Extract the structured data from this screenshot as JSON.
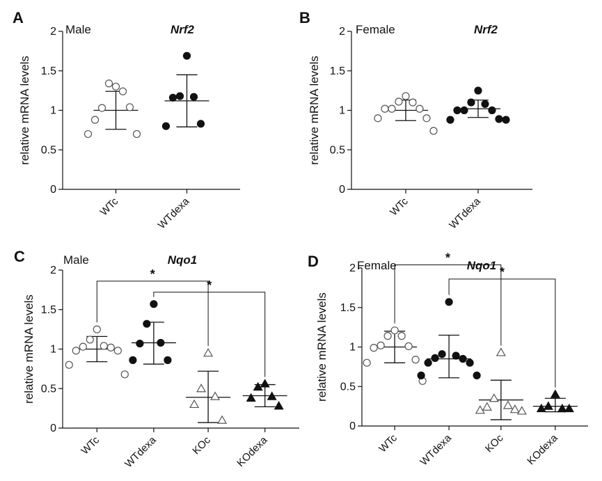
{
  "chart_data": [
    {
      "type": "scatter",
      "panel_label": "A",
      "sex": "Male",
      "gene": "Nrf2",
      "ylabel": "relative mRNA levels",
      "ylim": [
        0,
        2
      ],
      "yticks": [
        "0",
        "0.5",
        "1",
        "1.5",
        "2"
      ],
      "categories": [
        "WTc",
        "WTdexa"
      ],
      "groups": [
        {
          "name": "WTc",
          "marker": "circle-open",
          "mean": 1.0,
          "upper": 1.24,
          "lower": 0.76,
          "points": [
            1.3,
            1.34,
            1.24,
            1.03,
            1.04,
            0.88,
            0.7,
            0.7
          ]
        },
        {
          "name": "WTdexa",
          "marker": "circle-filled",
          "mean": 1.12,
          "upper": 1.45,
          "lower": 0.79,
          "points": [
            1.69,
            1.18,
            1.17,
            1.16,
            0.83,
            0.8
          ]
        }
      ],
      "comparisons": []
    },
    {
      "type": "scatter",
      "panel_label": "B",
      "sex": "Female",
      "gene": "Nrf2",
      "ylabel": "relative mRNA levels",
      "ylim": [
        0,
        2
      ],
      "yticks": [
        "0",
        "0.5",
        "1",
        "1.5",
        "2"
      ],
      "categories": [
        "WTc",
        "WTdexa"
      ],
      "groups": [
        {
          "name": "WTc",
          "marker": "circle-open",
          "mean": 1.0,
          "upper": 1.13,
          "lower": 0.87,
          "points": [
            1.18,
            1.11,
            1.1,
            1.02,
            1.02,
            1.02,
            0.9,
            0.9,
            0.74
          ]
        },
        {
          "name": "WTdexa",
          "marker": "circle-filled",
          "mean": 1.02,
          "upper": 1.13,
          "lower": 0.91,
          "points": [
            1.25,
            1.1,
            1.08,
            1.0,
            1.0,
            1.0,
            0.89,
            0.88,
            0.88
          ]
        }
      ],
      "comparisons": []
    },
    {
      "type": "scatter",
      "panel_label": "C",
      "sex": "Male",
      "gene": "Nqo1",
      "ylabel": "relative mRNA levels",
      "ylim": [
        0,
        2
      ],
      "yticks": [
        "0",
        "0.5",
        "1",
        "1.5",
        "2"
      ],
      "categories": [
        "WTc",
        "WTdexa",
        "KOc",
        "KOdexa"
      ],
      "groups": [
        {
          "name": "WTc",
          "marker": "circle-open",
          "mean": 1.0,
          "upper": 1.16,
          "lower": 0.84,
          "points": [
            1.25,
            1.12,
            1.04,
            1.03,
            1.02,
            0.98,
            0.98,
            0.8,
            0.68
          ]
        },
        {
          "name": "WTdexa",
          "marker": "circle-filled",
          "mean": 1.08,
          "upper": 1.34,
          "lower": 0.81,
          "points": [
            1.57,
            1.32,
            1.08,
            1.07,
            0.86,
            0.86
          ]
        },
        {
          "name": "KOc",
          "marker": "triangle-open",
          "mean": 0.39,
          "upper": 0.72,
          "lower": 0.07,
          "points": [
            0.95,
            0.5,
            0.4,
            0.3,
            0.1
          ]
        },
        {
          "name": "KOdexa",
          "marker": "triangle-filled",
          "mean": 0.41,
          "upper": 0.55,
          "lower": 0.27,
          "points": [
            0.56,
            0.52,
            0.4,
            0.38,
            0.28
          ]
        }
      ],
      "comparisons": [
        {
          "from": "WTc",
          "to": "KOc",
          "label": "*",
          "y": 1.86
        },
        {
          "from": "WTdexa",
          "to": "KOdexa",
          "label": "*",
          "y": 1.72
        }
      ]
    },
    {
      "type": "scatter",
      "panel_label": "D",
      "sex": "Female",
      "gene": "Nqo1",
      "ylabel": "relative mRNA levels",
      "ylim": [
        0,
        2
      ],
      "yticks": [
        "0",
        "0.5",
        "1",
        "1.5",
        "2"
      ],
      "categories": [
        "WTc",
        "WTdexa",
        "KOc",
        "KOdexa"
      ],
      "groups": [
        {
          "name": "WTc",
          "marker": "circle-open",
          "mean": 1.0,
          "upper": 1.2,
          "lower": 0.8,
          "points": [
            1.21,
            1.14,
            1.14,
            1.02,
            1.01,
            0.99,
            0.84,
            0.8,
            0.57
          ]
        },
        {
          "name": "WTdexa",
          "marker": "circle-filled",
          "mean": 0.85,
          "upper": 1.15,
          "lower": 0.61,
          "points": [
            1.57,
            0.91,
            0.89,
            0.86,
            0.85,
            0.8,
            0.8,
            0.64,
            0.64
          ]
        },
        {
          "name": "KOc",
          "marker": "triangle-open",
          "mean": 0.33,
          "upper": 0.58,
          "lower": 0.08,
          "points": [
            0.93,
            0.35,
            0.26,
            0.24,
            0.21,
            0.2,
            0.19
          ]
        },
        {
          "name": "KOdexa",
          "marker": "triangle-filled",
          "mean": 0.25,
          "upper": 0.35,
          "lower": 0.18,
          "points": [
            0.4,
            0.25,
            0.22,
            0.22,
            0.22
          ]
        }
      ],
      "comparisons": [
        {
          "from": "WTc",
          "to": "KOc",
          "label": "*",
          "y": 2.04
        },
        {
          "from": "WTdexa",
          "to": "KOdexa",
          "label": "*",
          "y": 1.86
        }
      ]
    }
  ]
}
